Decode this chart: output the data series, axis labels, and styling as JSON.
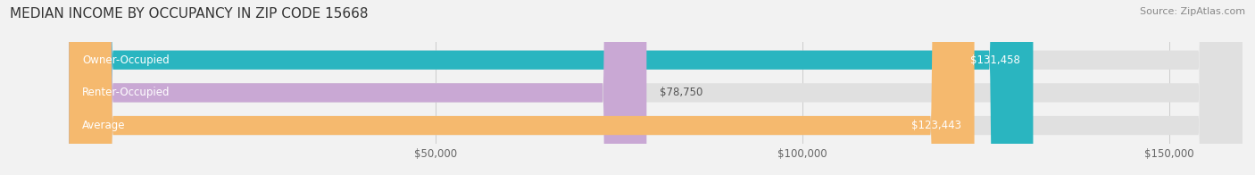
{
  "title": "MEDIAN INCOME BY OCCUPANCY IN ZIP CODE 15668",
  "source": "Source: ZipAtlas.com",
  "categories": [
    "Owner-Occupied",
    "Renter-Occupied",
    "Average"
  ],
  "values": [
    131458,
    78750,
    123443
  ],
  "bar_colors": [
    "#2ab5c0",
    "#c9a8d4",
    "#f5b96e"
  ],
  "bar_labels": [
    "$131,458",
    "$78,750",
    "$123,443"
  ],
  "xlim": [
    0,
    160000
  ],
  "xticks": [
    50000,
    100000,
    150000
  ],
  "xticklabels": [
    "$50,000",
    "$100,000",
    "$150,000"
  ],
  "background_color": "#f2f2f2",
  "bar_background_color": "#e0e0e0",
  "title_fontsize": 11,
  "label_fontsize": 8.5,
  "bar_height": 0.58,
  "value_threshold": 90000
}
